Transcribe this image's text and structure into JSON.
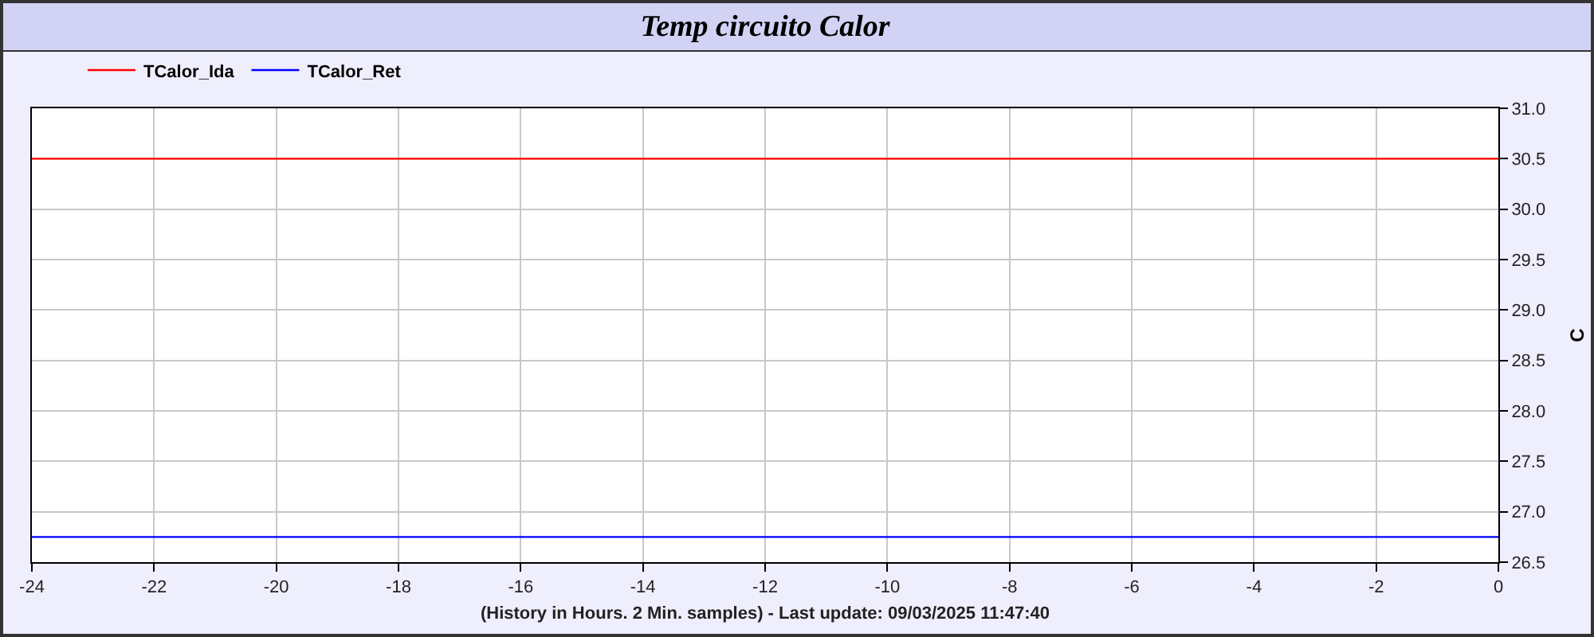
{
  "chart_data": {
    "type": "line",
    "title": "Temp circuito Calor",
    "xlabel": "(History in Hours. 2 Min. samples) - Last update: 09/03/2025 11:47:40",
    "ylabel": "C",
    "x": [
      -24,
      0
    ],
    "series": [
      {
        "name": "TCalor_Ida",
        "color": "#ff0000",
        "values": [
          30.5,
          30.5
        ]
      },
      {
        "name": "TCalor_Ret",
        "color": "#0000ff",
        "values": [
          26.75,
          26.75
        ]
      }
    ],
    "xlim": [
      -24,
      0
    ],
    "xticks": [
      -24,
      -22,
      -20,
      -18,
      -16,
      -14,
      -12,
      -10,
      -8,
      -6,
      -4,
      -2,
      0
    ],
    "ylim": [
      26.5,
      31.0
    ],
    "yticks": [
      26.5,
      {
        "value": 27,
        "label": "27.0"
      },
      27.5,
      {
        "value": 28,
        "label": "28.0"
      },
      28.5,
      {
        "value": 29,
        "label": "29.0"
      },
      29.5,
      {
        "value": 30,
        "label": "30.0"
      },
      30.5,
      {
        "value": 31,
        "label": "31.0"
      }
    ],
    "grid": true,
    "legend": "top left",
    "line_style": "solid"
  }
}
